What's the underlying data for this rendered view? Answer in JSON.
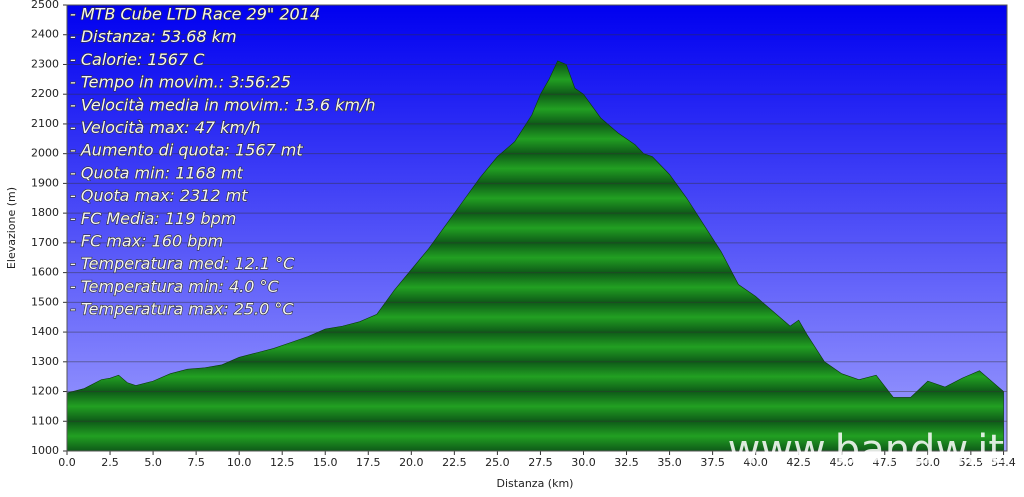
{
  "chart_data": {
    "type": "area",
    "annotations": [
      "- MTB Cube LTD Race 29\" 2014",
      "- Distanza: 53.68 km",
      "- Calorie: 1567 C",
      "- Tempo in movim.: 3:56:25",
      "- Velocità media in movim.: 13.6 km/h",
      "- Velocità max: 47 km/h",
      "- Aumento di quota: 1567 mt",
      "- Quota min: 1168 mt",
      "- Quota max: 2312 mt",
      "- FC Media: 119 bpm",
      "- FC max: 160 bpm",
      "- Temperatura med: 12.1 °C",
      "- Temperatura min: 4.0 °C",
      "- Temperatura max: 25.0 °C"
    ],
    "watermark": "www.bandw.it",
    "x_label": "Distanza   (km)",
    "y_label": "Elevazione (m)",
    "x": [
      0,
      1,
      2,
      2.5,
      3,
      3.5,
      4,
      5,
      6,
      7,
      8,
      9,
      10,
      11,
      12,
      13,
      14,
      15,
      16,
      17,
      18,
      19,
      20,
      21,
      22,
      23,
      24,
      25,
      26,
      27,
      27.5,
      28,
      28.5,
      29,
      29.5,
      30,
      31,
      32,
      33,
      33.5,
      34,
      35,
      36,
      37,
      38,
      39,
      40,
      41,
      42,
      42.5,
      43,
      44,
      45,
      46,
      47,
      48,
      49,
      50,
      51,
      52,
      53,
      54,
      54.4
    ],
    "values": [
      1195,
      1210,
      1240,
      1245,
      1255,
      1230,
      1220,
      1235,
      1260,
      1275,
      1280,
      1290,
      1315,
      1330,
      1345,
      1365,
      1385,
      1410,
      1420,
      1435,
      1460,
      1540,
      1610,
      1680,
      1760,
      1840,
      1920,
      1990,
      2040,
      2130,
      2200,
      2250,
      2312,
      2300,
      2220,
      2200,
      2120,
      2070,
      2030,
      2000,
      1990,
      1930,
      1850,
      1760,
      1670,
      1560,
      1520,
      1470,
      1420,
      1440,
      1390,
      1300,
      1260,
      1240,
      1255,
      1180,
      1180,
      1235,
      1215,
      1245,
      1270,
      1220,
      1200
    ],
    "color": "#22a022",
    "xlim": [
      0,
      54.6
    ],
    "ylim": [
      1000,
      2500
    ],
    "xticks": [
      {
        "value": 0,
        "label": "0.0"
      },
      2.5,
      {
        "value": 5,
        "label": "5.0"
      },
      7.5,
      {
        "value": 10,
        "label": "10.0"
      },
      12.5,
      {
        "value": 15,
        "label": "15.0"
      },
      17.5,
      {
        "value": 20,
        "label": "20.0"
      },
      22.5,
      {
        "value": 25,
        "label": "25.0"
      },
      27.5,
      {
        "value": 30,
        "label": "30.0"
      },
      32.5,
      {
        "value": 35,
        "label": "35.0"
      },
      37.5,
      {
        "value": 40,
        "label": "40.0"
      },
      42.5,
      {
        "value": 45,
        "label": "45.0"
      },
      47.5,
      {
        "value": 50,
        "label": "50.0"
      },
      52.5,
      54.4
    ],
    "yticks": [
      1000,
      1100,
      1200,
      1300,
      1400,
      1500,
      1600,
      1700,
      1800,
      1900,
      2000,
      2100,
      2200,
      2300,
      2400,
      2500
    ],
    "grid": true
  }
}
